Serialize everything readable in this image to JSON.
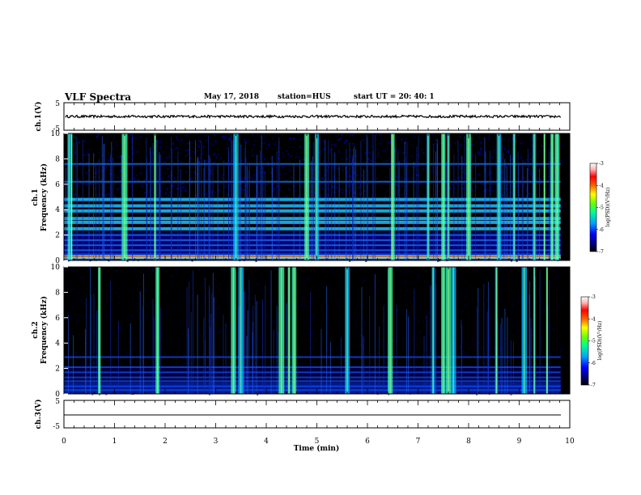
{
  "header": {
    "title": "VLF Spectra",
    "date": "May 17, 2018",
    "station": "station=HUS",
    "start": "start  UT =   20: 40: 1"
  },
  "colors": {
    "spectrogram_background": "#000000",
    "colorbar_stops": [
      "#000000",
      "#00006e",
      "#0000ff",
      "#00a0ff",
      "#00ff90",
      "#70ff00",
      "#ffff00",
      "#ff6000",
      "#ff0000",
      "#ffb0b0",
      "#ffffff"
    ]
  },
  "chart_data": [
    {
      "type": "line",
      "name": "ch1-waveform",
      "ylabel": "ch.1(V)",
      "yticks": [
        "5",
        "-5"
      ],
      "ylim": [
        -5,
        5
      ],
      "xlim": [
        0,
        10
      ],
      "description_value": 0.0
    },
    {
      "type": "heatmap",
      "name": "ch1-spectrogram",
      "ylabel": "ch.1 Frequency (kHz)",
      "yticks": [
        "0",
        "2",
        "4",
        "6",
        "8",
        "10"
      ],
      "ylim": [
        0,
        10
      ],
      "xlim": [
        0,
        10
      ],
      "horizontal_bands_khz": [
        0.4,
        0.8,
        1.2,
        1.6,
        2.0,
        2.5,
        3.0,
        3.3,
        3.9,
        4.3,
        4.8,
        6.2,
        7.6
      ],
      "bright_bursts_min": [
        0.1,
        0.15,
        1.2,
        1.8,
        3.4,
        4.8,
        5.0,
        6.5,
        7.2,
        7.5,
        7.6,
        8.0,
        8.6,
        8.9,
        9.3,
        9.5,
        9.65,
        9.75
      ],
      "colorbar": {
        "ticks": [
          "-3",
          "-4",
          "-5",
          "-6",
          "-7"
        ],
        "label": "log(PSD)(V²/Hz)",
        "range": [
          -7,
          -3
        ]
      }
    },
    {
      "type": "heatmap",
      "name": "ch2-spectrogram",
      "ylabel": "ch.2 Frequency (kHz)",
      "yticks": [
        "0",
        "2",
        "4",
        "6",
        "8",
        "10"
      ],
      "ylim": [
        0,
        10
      ],
      "xlim": [
        0,
        10
      ],
      "horizontal_bands_khz": [
        0.3,
        0.6,
        1.0,
        1.3,
        1.7,
        2.1,
        2.9
      ],
      "bright_bursts_min": [
        0.7,
        1.85,
        3.35,
        3.5,
        4.3,
        4.45,
        4.55,
        5.6,
        6.45,
        7.3,
        7.5,
        7.6,
        7.7,
        8.55,
        9.1,
        9.3,
        9.55
      ],
      "colorbar": {
        "ticks": [
          "-3",
          "-4",
          "-5",
          "-6",
          "-7"
        ],
        "label": "log(PSD)(V²/Hz)",
        "range": [
          -7,
          -3
        ]
      }
    },
    {
      "type": "line",
      "name": "ch3-waveform",
      "ylabel": "ch.3(V)",
      "yticks": [
        "5",
        "-5"
      ],
      "ylim": [
        -5,
        5
      ],
      "xlim": [
        0,
        10
      ],
      "description_value": -1.0
    }
  ],
  "xaxis": {
    "label": "Time (min)",
    "ticks": [
      "0",
      "1",
      "2",
      "3",
      "4",
      "5",
      "6",
      "7",
      "8",
      "9",
      "10"
    ],
    "range": [
      0,
      10
    ]
  }
}
